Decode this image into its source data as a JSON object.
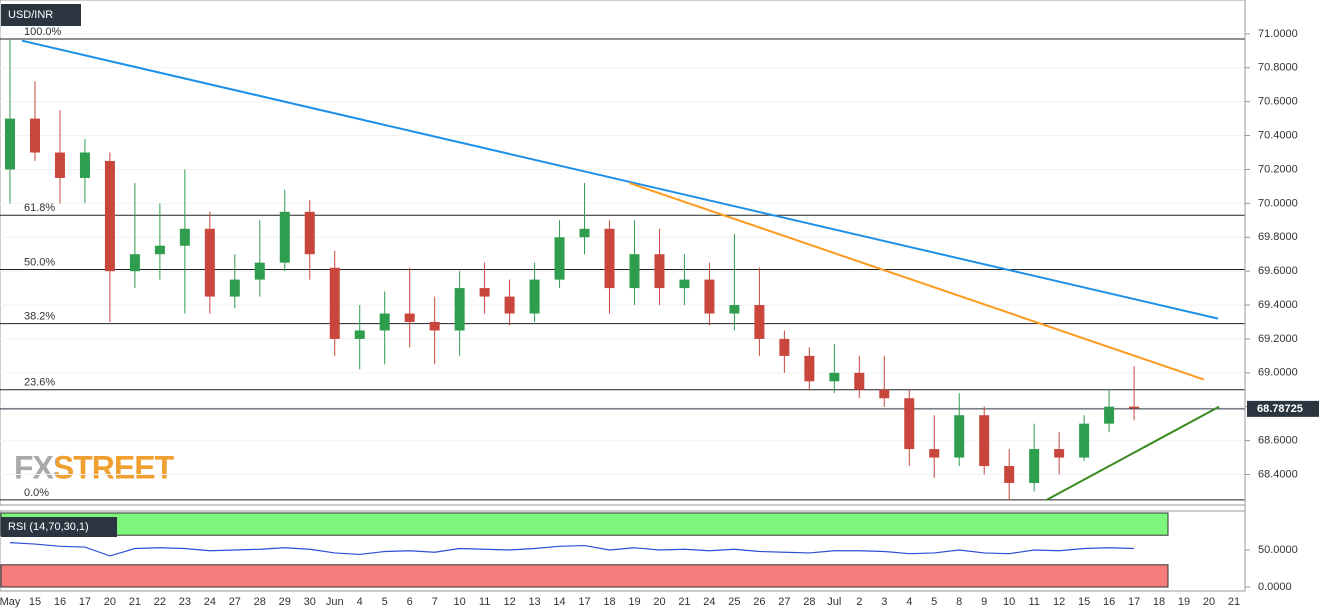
{
  "chart_data": [
    {
      "type": "candlestick",
      "title": "USD/INR",
      "watermark": "FXSTREET",
      "categories": [
        "May",
        "15",
        "16",
        "17",
        "20",
        "21",
        "22",
        "23",
        "24",
        "27",
        "28",
        "29",
        "30",
        "Jun",
        "4",
        "5",
        "6",
        "7",
        "10",
        "11",
        "12",
        "13",
        "14",
        "17",
        "18",
        "19",
        "20",
        "21",
        "24",
        "25",
        "26",
        "27",
        "28",
        "Jul",
        "2",
        "3",
        "4",
        "5",
        "8",
        "9",
        "10",
        "11",
        "12",
        "15",
        "16",
        "17",
        "18",
        "19",
        "20",
        "21"
      ],
      "open": [
        70.2,
        70.5,
        70.3,
        70.15,
        70.25,
        69.6,
        69.7,
        69.75,
        69.85,
        69.45,
        69.55,
        69.65,
        69.95,
        69.62,
        69.2,
        69.25,
        69.35,
        69.3,
        69.25,
        69.5,
        69.45,
        69.35,
        69.55,
        69.8,
        69.85,
        69.5,
        69.7,
        69.5,
        69.55,
        69.35,
        69.4,
        69.2,
        69.1,
        68.95,
        69.0,
        68.9,
        68.85,
        68.55,
        68.5,
        68.75,
        68.45,
        68.35,
        68.55,
        68.5,
        68.7,
        68.8,
        null,
        null,
        null,
        null
      ],
      "high": [
        70.97,
        70.72,
        70.55,
        70.38,
        70.3,
        70.12,
        70.0,
        70.2,
        69.95,
        69.7,
        69.9,
        70.08,
        70.02,
        69.72,
        69.4,
        69.48,
        69.62,
        69.45,
        69.6,
        69.65,
        69.55,
        69.65,
        69.9,
        70.12,
        69.9,
        69.9,
        69.85,
        69.7,
        69.65,
        69.82,
        69.62,
        69.25,
        69.15,
        69.17,
        69.1,
        69.1,
        68.9,
        68.75,
        68.88,
        68.8,
        68.55,
        68.7,
        68.65,
        68.75,
        68.9,
        69.04,
        null,
        null,
        null,
        null
      ],
      "low": [
        70.0,
        70.25,
        70.0,
        70.0,
        69.3,
        69.5,
        69.55,
        69.35,
        69.35,
        69.38,
        69.45,
        69.6,
        69.55,
        69.1,
        69.02,
        69.05,
        69.15,
        69.05,
        69.1,
        69.35,
        69.28,
        69.3,
        69.5,
        69.7,
        69.35,
        69.4,
        69.4,
        69.4,
        69.28,
        69.25,
        69.1,
        69.0,
        68.9,
        68.88,
        68.85,
        68.8,
        68.45,
        68.38,
        68.45,
        68.4,
        68.25,
        68.3,
        68.4,
        68.48,
        68.65,
        68.72,
        null,
        null,
        null,
        null
      ],
      "close": [
        70.5,
        70.3,
        70.15,
        70.3,
        69.6,
        69.7,
        69.75,
        69.85,
        69.45,
        69.55,
        69.65,
        69.95,
        69.7,
        69.2,
        69.25,
        69.35,
        69.3,
        69.25,
        69.5,
        69.45,
        69.35,
        69.55,
        69.8,
        69.85,
        69.5,
        69.7,
        69.5,
        69.55,
        69.35,
        69.4,
        69.2,
        69.1,
        68.95,
        69.0,
        68.9,
        68.85,
        68.55,
        68.5,
        68.75,
        68.45,
        68.35,
        68.55,
        68.5,
        68.7,
        68.8,
        68.79,
        null,
        null,
        null,
        null
      ],
      "up_color": "#2e9d4e",
      "down_color": "#c9463d",
      "ylim": [
        68.22,
        71.2
      ],
      "yticks": [
        {
          "value": 68.4,
          "label": "68.4000"
        },
        {
          "value": 68.6,
          "label": "68.6000"
        },
        {
          "value": 68.8,
          "label": "68.8000"
        },
        {
          "value": 69.0,
          "label": "69.0000"
        },
        {
          "value": 69.2,
          "label": "69.2000"
        },
        {
          "value": 69.4,
          "label": "69.4000"
        },
        {
          "value": 69.6,
          "label": "69.6000"
        },
        {
          "value": 69.8,
          "label": "69.8000"
        },
        {
          "value": 70.0,
          "label": "70.0000"
        },
        {
          "value": 70.2,
          "label": "70.2000"
        },
        {
          "value": 70.4,
          "label": "70.4000"
        },
        {
          "value": 70.6,
          "label": "70.6000"
        },
        {
          "value": 70.8,
          "label": "70.8000"
        },
        {
          "value": 71.0,
          "label": "71.0000"
        }
      ],
      "levels": [
        {
          "label": "100.0%",
          "value": 70.97
        },
        {
          "label": "61.8%",
          "value": 69.93
        },
        {
          "label": "50.0%",
          "value": 69.61
        },
        {
          "label": "38.2%",
          "value": 69.29
        },
        {
          "label": "23.6%",
          "value": 68.9
        },
        {
          "label": "0.0%",
          "value": 68.25
        }
      ],
      "trendlines": [
        {
          "color": "#1e90e8",
          "x": [
            0.48,
            48.36
          ],
          "y": [
            70.96,
            69.32
          ]
        },
        {
          "color": "#ff9a1f",
          "x": [
            24.8,
            47.8
          ],
          "y": [
            70.12,
            68.96
          ]
        },
        {
          "color": "#3a8a1e",
          "x": [
            41.5,
            48.4
          ],
          "y": [
            68.25,
            68.8
          ]
        }
      ],
      "last_price": 68.78725
    },
    {
      "type": "line",
      "title": "RSI (14,70,30,1)",
      "color": "#2d4fd6",
      "values": [
        60,
        58,
        55,
        54,
        42,
        52,
        53,
        52,
        49,
        50,
        51,
        53,
        51,
        46,
        44,
        48,
        49,
        47,
        52,
        51,
        50,
        52,
        55,
        56,
        50,
        53,
        50,
        51,
        49,
        51,
        48,
        47,
        46,
        49,
        49,
        48,
        45,
        46,
        50,
        46,
        45,
        50,
        49,
        52,
        53,
        52,
        null,
        null,
        null,
        null
      ],
      "overbought": 70,
      "oversold": 30,
      "overbought_color": "#7cf77c",
      "oversold_color": "#f77c7c",
      "ylim": [
        0,
        100
      ],
      "yticks": [
        {
          "value": 0,
          "label": "0.0000"
        },
        {
          "value": 50,
          "label": "50.0000"
        }
      ]
    }
  ]
}
